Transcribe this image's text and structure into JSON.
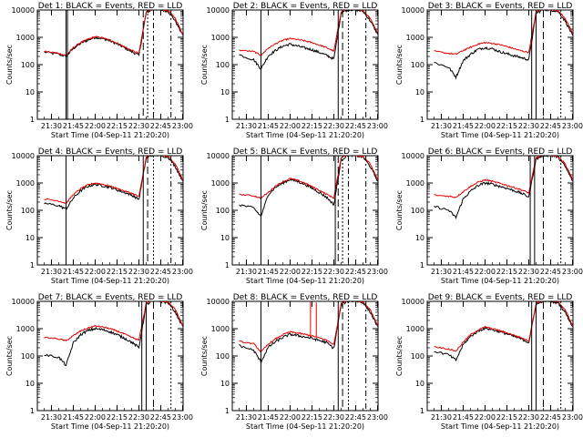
{
  "figure": {
    "x_label": "Start Time (04-Sep-11 21:20:20)",
    "y_label": "Counts/sec",
    "x_tick_labels": [
      "21:30",
      "21:45",
      "22:00",
      "22:15",
      "22:30",
      "22:45",
      "23:00"
    ],
    "y_tick_labels": [
      "1",
      "10",
      "100",
      "1000",
      "10000"
    ]
  },
  "chart_data": [
    {
      "type": "line",
      "title": "Det 1: BLACK = Events, RED = LLD",
      "xlabel": "Start Time (04-Sep-11 21:20:20)",
      "ylabel": "Counts/sec",
      "yscale": "log",
      "ylim": [
        1,
        10000
      ],
      "x": [
        "21:25",
        "21:35",
        "21:40",
        "21:45",
        "21:50",
        "21:55",
        "22:00",
        "22:05",
        "22:10",
        "22:15",
        "22:20",
        "22:25",
        "22:30",
        "22:35",
        "22:40",
        "22:45",
        "22:50",
        "22:55",
        "23:00"
      ],
      "series": [
        {
          "name": "BLACK = Events",
          "color": "#000000",
          "values": [
            290,
            240,
            200,
            390,
            600,
            800,
            1000,
            900,
            750,
            570,
            420,
            300,
            220,
            8000,
            11000,
            10000,
            9000,
            4000,
            1200
          ]
        },
        {
          "name": "RED = LLD",
          "color": "#e00000",
          "values": [
            310,
            260,
            215,
            420,
            650,
            850,
            1050,
            950,
            800,
            610,
            450,
            330,
            260,
            8500,
            11500,
            10500,
            9500,
            5000,
            1300
          ]
        }
      ],
      "markers": [
        "21:40",
        "21:41",
        "22:33",
        "22:36",
        "22:40",
        "22:52"
      ]
    },
    {
      "type": "line",
      "title": "Det 2: BLACK = Events, RED = LLD",
      "xlabel": "Start Time (04-Sep-11 21:20:20)",
      "ylabel": "Counts/sec",
      "yscale": "log",
      "ylim": [
        1,
        10000
      ],
      "x": [
        "21:25",
        "21:35",
        "21:40",
        "21:45",
        "21:50",
        "21:55",
        "22:00",
        "22:05",
        "22:10",
        "22:15",
        "22:20",
        "22:25",
        "22:30",
        "22:35",
        "22:40",
        "22:45",
        "22:50",
        "22:55",
        "23:00"
      ],
      "series": [
        {
          "name": "BLACK = Events",
          "color": "#000000",
          "values": [
            230,
            150,
            70,
            210,
            330,
            480,
            560,
            480,
            410,
            350,
            280,
            220,
            160,
            8000,
            10500,
            10000,
            9000,
            4000,
            1300
          ]
        },
        {
          "name": "RED = LLD",
          "color": "#e00000",
          "values": [
            340,
            300,
            220,
            400,
            580,
            780,
            900,
            830,
            740,
            640,
            520,
            420,
            310,
            8700,
            11500,
            10500,
            9500,
            5000,
            1500
          ]
        }
      ],
      "markers": [
        "21:40",
        "22:33",
        "22:36",
        "22:40",
        "22:52"
      ]
    },
    {
      "type": "line",
      "title": "Det 3: BLACK = Events, RED = LLD",
      "xlabel": "Start Time (04-Sep-11 21:20:20)",
      "ylabel": "Counts/sec",
      "yscale": "log",
      "ylim": [
        1,
        10000
      ],
      "x": [
        "21:25",
        "21:35",
        "21:40",
        "21:45",
        "21:50",
        "21:55",
        "22:00",
        "22:05",
        "22:10",
        "22:15",
        "22:20",
        "22:25",
        "22:30",
        "22:35",
        "22:40",
        "22:45",
        "22:50",
        "22:55",
        "23:00"
      ],
      "series": [
        {
          "name": "BLACK = Events",
          "color": "#000000",
          "values": [
            120,
            80,
            35,
            140,
            240,
            360,
            420,
            380,
            300,
            250,
            210,
            180,
            150,
            7500,
            10500,
            10000,
            9000,
            4000,
            1200
          ]
        },
        {
          "name": "RED = LLD",
          "color": "#e00000",
          "values": [
            310,
            260,
            240,
            330,
            430,
            560,
            640,
            600,
            540,
            460,
            380,
            320,
            280,
            8500,
            11500,
            10500,
            9500,
            5000,
            1400
          ]
        }
      ],
      "markers": [
        "22:32",
        "22:35",
        "22:40",
        "22:52"
      ]
    },
    {
      "type": "line",
      "title": "Det 4: BLACK = Events, RED = LLD",
      "xlabel": "Start Time (04-Sep-11 21:20:20)",
      "ylabel": "Counts/sec",
      "yscale": "log",
      "ylim": [
        1,
        10000
      ],
      "x": [
        "21:25",
        "21:35",
        "21:40",
        "21:45",
        "21:50",
        "21:55",
        "22:00",
        "22:05",
        "22:10",
        "22:15",
        "22:20",
        "22:25",
        "22:30",
        "22:35",
        "22:40",
        "22:45",
        "22:50",
        "22:55",
        "23:00"
      ],
      "series": [
        {
          "name": "BLACK = Events",
          "color": "#000000",
          "values": [
            180,
            150,
            110,
            280,
            520,
            750,
            900,
            800,
            700,
            560,
            450,
            360,
            250,
            8000,
            11000,
            10000,
            9000,
            4000,
            1200
          ]
        },
        {
          "name": "RED = LLD",
          "color": "#e00000",
          "values": [
            260,
            220,
            180,
            380,
            620,
            850,
            1000,
            900,
            780,
            630,
            510,
            420,
            320,
            8600,
            11500,
            10500,
            9500,
            5000,
            1300
          ]
        }
      ],
      "markers": [
        "21:40",
        "22:33",
        "22:36",
        "22:40",
        "22:52"
      ]
    },
    {
      "type": "line",
      "title": "Det 5: BLACK = Events, RED = LLD",
      "xlabel": "Start Time (04-Sep-11 21:20:20)",
      "ylabel": "Counts/sec",
      "yscale": "log",
      "ylim": [
        1,
        10000
      ],
      "x": [
        "21:25",
        "21:35",
        "21:40",
        "21:45",
        "21:50",
        "21:55",
        "22:00",
        "22:05",
        "22:10",
        "22:15",
        "22:20",
        "22:25",
        "22:30",
        "22:35",
        "22:40",
        "22:45",
        "22:50",
        "22:55",
        "23:00"
      ],
      "series": [
        {
          "name": "BLACK = Events",
          "color": "#000000",
          "values": [
            160,
            120,
            60,
            380,
            700,
            1000,
            1350,
            1150,
            900,
            650,
            450,
            300,
            160,
            7000,
            11000,
            10000,
            9000,
            4000,
            1200
          ]
        },
        {
          "name": "RED = LLD",
          "color": "#e00000",
          "values": [
            380,
            340,
            280,
            450,
            780,
            1100,
            1450,
            1250,
            1000,
            740,
            540,
            390,
            280,
            8500,
            11500,
            10500,
            9500,
            5000,
            1300
          ]
        }
      ],
      "markers": [
        "21:40",
        "22:31",
        "22:33",
        "22:36",
        "22:40",
        "22:52"
      ]
    },
    {
      "type": "line",
      "title": "Det 6: BLACK = Events, RED = LLD",
      "xlabel": "Start Time (04-Sep-11 21:20:20)",
      "ylabel": "Counts/sec",
      "yscale": "log",
      "ylim": [
        1,
        10000
      ],
      "x": [
        "21:25",
        "21:35",
        "21:40",
        "21:45",
        "21:50",
        "21:55",
        "22:00",
        "22:05",
        "22:10",
        "22:15",
        "22:20",
        "22:25",
        "22:30",
        "22:35",
        "22:40",
        "22:45",
        "22:50",
        "22:55",
        "23:00"
      ],
      "series": [
        {
          "name": "BLACK = Events",
          "color": "#000000",
          "values": [
            140,
            100,
            55,
            260,
            500,
            800,
            1000,
            900,
            760,
            640,
            520,
            420,
            310,
            7500,
            10500,
            10000,
            9000,
            4000,
            1200
          ]
        },
        {
          "name": "RED = LLD",
          "color": "#e00000",
          "values": [
            360,
            330,
            300,
            480,
            750,
            1050,
            1300,
            1150,
            980,
            820,
            680,
            560,
            430,
            8500,
            11500,
            10500,
            9500,
            5000,
            1400
          ]
        }
      ],
      "markers": [
        "22:31",
        "22:34",
        "22:40",
        "22:52"
      ]
    },
    {
      "type": "line",
      "title": "Det 7: BLACK = Events, RED = LLD",
      "xlabel": "Start Time (04-Sep-11 21:20:20)",
      "ylabel": "Counts/sec",
      "yscale": "log",
      "ylim": [
        1,
        10000
      ],
      "x": [
        "21:25",
        "21:35",
        "21:40",
        "21:45",
        "21:50",
        "21:55",
        "22:00",
        "22:05",
        "22:10",
        "22:15",
        "22:20",
        "22:25",
        "22:30",
        "22:35",
        "22:40",
        "22:45",
        "22:50",
        "22:55",
        "23:00"
      ],
      "series": [
        {
          "name": "BLACK = Events",
          "color": "#000000",
          "values": [
            110,
            90,
            45,
            300,
            600,
            850,
            1000,
            920,
            780,
            600,
            450,
            320,
            200,
            7500,
            11000,
            10000,
            9000,
            4000,
            1200
          ]
        },
        {
          "name": "RED = LLD",
          "color": "#e00000",
          "values": [
            480,
            420,
            360,
            550,
            820,
            1050,
            1250,
            1150,
            1000,
            820,
            640,
            480,
            380,
            8600,
            11500,
            10500,
            9500,
            5000,
            1300
          ]
        }
      ],
      "markers": [
        "22:32",
        "22:35",
        "22:40",
        "22:52"
      ]
    },
    {
      "type": "line",
      "title": "Det 8: BLACK = Events, RED = LLD",
      "xlabel": "Start Time (04-Sep-11 21:20:20)",
      "ylabel": "Counts/sec",
      "yscale": "log",
      "ylim": [
        1,
        10000
      ],
      "x": [
        "21:25",
        "21:35",
        "21:40",
        "21:45",
        "21:50",
        "21:55",
        "22:00",
        "22:05",
        "22:10",
        "22:15",
        "22:20",
        "22:25",
        "22:30",
        "22:35",
        "22:40",
        "22:45",
        "22:50",
        "22:55",
        "23:00"
      ],
      "series": [
        {
          "name": "BLACK = Events",
          "color": "#000000",
          "values": [
            240,
            160,
            60,
            210,
            330,
            480,
            620,
            560,
            500,
            440,
            370,
            310,
            190,
            7500,
            10500,
            10000,
            9000,
            4000,
            1200
          ]
        },
        {
          "name": "RED = LLD",
          "color": "#e00000",
          "values": [
            340,
            280,
            140,
            270,
            420,
            600,
            760,
            690,
            620,
            540,
            460,
            380,
            260,
            8500,
            11500,
            10500,
            9500,
            5000,
            1300
          ]
        }
      ],
      "spikes": [
        {
          "x": "22:14",
          "value": 10000
        },
        {
          "x": "22:18",
          "value": 9000
        }
      ],
      "markers": [
        "21:40",
        "22:33",
        "22:36",
        "22:40",
        "22:52"
      ]
    },
    {
      "type": "line",
      "title": "Det 9: BLACK = Events, RED = LLD",
      "xlabel": "Start Time (04-Sep-11 21:20:20)",
      "ylabel": "Counts/sec",
      "yscale": "log",
      "ylim": [
        1,
        10000
      ],
      "x": [
        "21:25",
        "21:35",
        "21:40",
        "21:45",
        "21:50",
        "21:55",
        "22:00",
        "22:05",
        "22:10",
        "22:15",
        "22:20",
        "22:25",
        "22:30",
        "22:35",
        "22:40",
        "22:45",
        "22:50",
        "22:55",
        "23:00"
      ],
      "series": [
        {
          "name": "BLACK = Events",
          "color": "#000000",
          "values": [
            150,
            110,
            70,
            260,
            520,
            800,
            1050,
            920,
            780,
            640,
            520,
            420,
            310,
            7500,
            10500,
            10000,
            9000,
            4000,
            1200
          ]
        },
        {
          "name": "RED = LLD",
          "color": "#e00000",
          "values": [
            220,
            180,
            150,
            320,
            600,
            880,
            1150,
            1000,
            850,
            700,
            570,
            460,
            350,
            8500,
            11500,
            10500,
            9500,
            5000,
            1300
          ]
        }
      ],
      "markers": [
        "22:32",
        "22:35",
        "22:40",
        "22:52"
      ]
    }
  ]
}
